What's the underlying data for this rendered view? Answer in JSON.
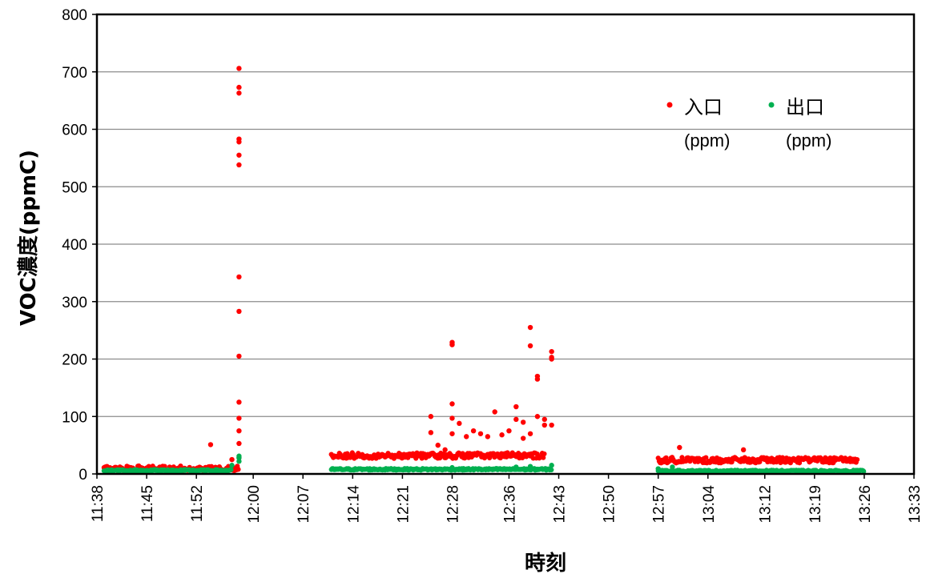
{
  "chart_data": {
    "type": "scatter",
    "title": "",
    "xlabel": "時刻",
    "ylabel": "VOC濃度(ppmC)",
    "ylim": [
      0,
      800
    ],
    "yticks": [
      0,
      100,
      200,
      300,
      400,
      500,
      600,
      700,
      800
    ],
    "xlim": [
      "11:38",
      "13:33"
    ],
    "xticks": [
      "11:38",
      "11:45",
      "11:52",
      "12:00",
      "12:07",
      "12:14",
      "12:21",
      "12:28",
      "12:36",
      "12:43",
      "12:50",
      "12:57",
      "13:04",
      "13:12",
      "13:19",
      "13:26",
      "13:33"
    ],
    "grid": "horizontal",
    "legend_position": "top-right",
    "colors": {
      "inlet": "#ff0000",
      "outlet": "#00b050"
    },
    "legend": [
      {
        "label": "入口",
        "unit": "(ppm)",
        "color": "#ff0000"
      },
      {
        "label": "出口",
        "unit": "(ppm)",
        "color": "#00b050"
      }
    ],
    "series": [
      {
        "name": "入口 (ppm)",
        "color": "#ff0000",
        "segments": [
          {
            "start": "11:39",
            "end": "11:58",
            "base": 7
          },
          {
            "start": "12:11",
            "end": "12:41",
            "base": 30
          },
          {
            "start": "12:57",
            "end": "13:25",
            "base": 22
          }
        ],
        "points": [
          [
            "11:54",
            51
          ],
          [
            "11:57",
            25
          ],
          [
            "11:58",
            706
          ],
          [
            "11:58",
            673
          ],
          [
            "11:58",
            663
          ],
          [
            "11:58",
            583
          ],
          [
            "11:58",
            578
          ],
          [
            "11:58",
            555
          ],
          [
            "11:58",
            538
          ],
          [
            "11:58",
            343
          ],
          [
            "11:58",
            283
          ],
          [
            "11:58",
            205
          ],
          [
            "11:58",
            125
          ],
          [
            "11:58",
            97
          ],
          [
            "11:58",
            75
          ],
          [
            "11:58",
            53
          ],
          [
            "11:58",
            28
          ],
          [
            "12:25",
            100
          ],
          [
            "12:25",
            72
          ],
          [
            "12:26",
            50
          ],
          [
            "12:27",
            42
          ],
          [
            "12:28",
            229
          ],
          [
            "12:28",
            225
          ],
          [
            "12:28",
            122
          ],
          [
            "12:28",
            97
          ],
          [
            "12:28",
            70
          ],
          [
            "12:29",
            88
          ],
          [
            "12:30",
            65
          ],
          [
            "12:31",
            75
          ],
          [
            "12:32",
            70
          ],
          [
            "12:33",
            65
          ],
          [
            "12:34",
            108
          ],
          [
            "12:35",
            68
          ],
          [
            "12:36",
            75
          ],
          [
            "12:37",
            117
          ],
          [
            "12:37",
            95
          ],
          [
            "12:38",
            90
          ],
          [
            "12:38",
            62
          ],
          [
            "12:39",
            70
          ],
          [
            "12:39",
            255
          ],
          [
            "12:39",
            223
          ],
          [
            "12:40",
            170
          ],
          [
            "12:40",
            165
          ],
          [
            "12:40",
            100
          ],
          [
            "12:41",
            95
          ],
          [
            "12:41",
            85
          ],
          [
            "12:42",
            213
          ],
          [
            "12:42",
            203
          ],
          [
            "12:42",
            200
          ],
          [
            "12:42",
            85
          ],
          [
            "13:00",
            46
          ],
          [
            "13:09",
            42
          ],
          [
            "13:24",
            27
          ]
        ]
      },
      {
        "name": "出口 (ppm)",
        "color": "#00b050",
        "segments": [
          {
            "start": "11:39",
            "end": "11:57",
            "base": 6
          },
          {
            "start": "12:11",
            "end": "12:42",
            "base": 8
          },
          {
            "start": "12:57",
            "end": "13:26",
            "base": 5
          }
        ],
        "points": [
          [
            "11:57",
            15
          ],
          [
            "11:58",
            22
          ],
          [
            "11:58",
            28
          ],
          [
            "11:58",
            31
          ],
          [
            "12:28",
            11
          ],
          [
            "12:37",
            12
          ],
          [
            "12:39",
            13
          ],
          [
            "12:42",
            15
          ],
          [
            "12:57",
            9
          ],
          [
            "12:59",
            12
          ]
        ]
      }
    ]
  }
}
